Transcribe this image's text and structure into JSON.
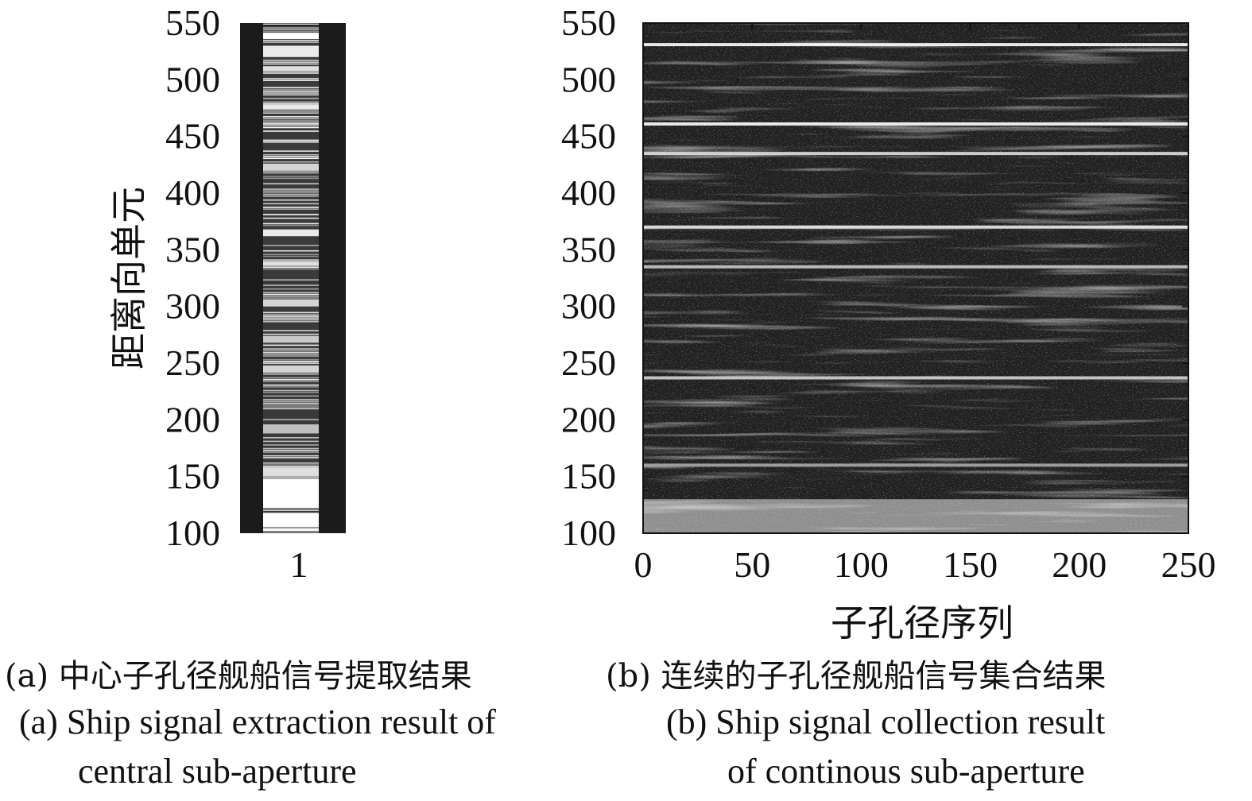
{
  "chart_data": [
    {
      "panel": "a",
      "type": "heatmap",
      "ylabel": "距离向单元",
      "ylim": [
        100,
        550
      ],
      "yticks": [
        550,
        500,
        450,
        400,
        350,
        300,
        250,
        200,
        150,
        100
      ],
      "xticks": [
        "1"
      ],
      "grid": false,
      "colormap": "gray",
      "bright_bands": [
        {
          "from": 102,
          "to": 104,
          "level": 1.0
        },
        {
          "from": 106,
          "to": 118,
          "level": 1.0
        },
        {
          "from": 122,
          "to": 148,
          "level": 1.0
        },
        {
          "from": 150,
          "to": 158,
          "level": 0.85
        },
        {
          "from": 188,
          "to": 196,
          "level": 0.7
        },
        {
          "from": 242,
          "to": 248,
          "level": 0.8
        },
        {
          "from": 268,
          "to": 274,
          "level": 0.75
        },
        {
          "from": 300,
          "to": 306,
          "level": 0.8
        },
        {
          "from": 336,
          "to": 340,
          "level": 0.85
        },
        {
          "from": 362,
          "to": 368,
          "level": 0.9
        },
        {
          "from": 420,
          "to": 426,
          "level": 0.8
        },
        {
          "from": 474,
          "to": 478,
          "level": 0.9
        },
        {
          "from": 508,
          "to": 512,
          "level": 0.85
        },
        {
          "from": 520,
          "to": 530,
          "level": 0.9
        },
        {
          "from": 536,
          "to": 541,
          "level": 1.0
        }
      ]
    },
    {
      "panel": "b",
      "type": "heatmap",
      "xlabel": "子孔径序列",
      "xlim": [
        0,
        250
      ],
      "xticks": [
        0,
        50,
        100,
        150,
        200,
        250
      ],
      "ylim": [
        100,
        550
      ],
      "yticks": [
        550,
        500,
        450,
        400,
        350,
        300,
        250,
        200,
        150,
        100
      ],
      "grid": false,
      "colormap": "gray",
      "bright_rows": [
        {
          "y": 531,
          "level": 1.0
        },
        {
          "y": 461,
          "level": 1.0
        },
        {
          "y": 435,
          "level": 0.85
        },
        {
          "y": 370,
          "level": 0.9
        },
        {
          "y": 335,
          "level": 0.75
        },
        {
          "y": 237,
          "level": 0.8
        },
        {
          "y": 160,
          "level": 0.6
        }
      ],
      "bright_region": {
        "y_from": 100,
        "y_to": 130,
        "level": 0.9
      }
    }
  ],
  "captions": {
    "a_zh": "(a) 中心子孔径舰船信号提取结果",
    "b_zh": "(b) 连续的子孔径舰船信号集合结果",
    "a_en_line1": "(a) Ship signal extraction result of",
    "a_en_line2": "central sub-aperture",
    "b_en_line1": "(b) Ship signal collection result",
    "b_en_line2": "of continous sub-aperture"
  }
}
